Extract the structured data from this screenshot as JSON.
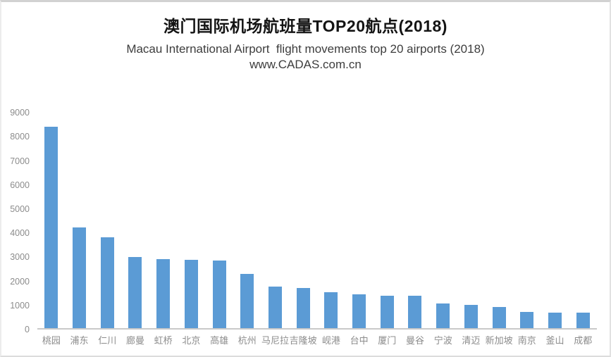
{
  "header": {
    "title": "澳门国际机场航班量TOP20航点(2018)",
    "subtitle": "Macau International Airport  flight movements top 20 airports (2018)",
    "website": "www.CADAS.com.cn"
  },
  "chart_data": {
    "type": "bar",
    "title": "澳门国际机场航班量TOP20航点(2018)",
    "subtitle": "Macau International Airport  flight movements top 20 airports (2018)",
    "watermark": "www.CADAS.com.cn",
    "categories": [
      "桃园",
      "浦东",
      "仁川",
      "廊曼",
      "虹桥",
      "北京",
      "高雄",
      "杭州",
      "马尼拉",
      "吉隆坡",
      "岘港",
      "台中",
      "厦门",
      "曼谷",
      "宁波",
      "清迈",
      "新加坡",
      "南京",
      "釜山",
      "成都"
    ],
    "values": [
      8350,
      4180,
      3770,
      2940,
      2870,
      2840,
      2820,
      2260,
      1730,
      1660,
      1500,
      1390,
      1360,
      1350,
      1010,
      960,
      890,
      660,
      650,
      640
    ],
    "xlabel": "",
    "ylabel": "",
    "ylim": [
      0,
      9000
    ],
    "ytick_step": 1000,
    "ytick_labels": [
      "0",
      "1000",
      "2000",
      "3000",
      "4000",
      "5000",
      "6000",
      "7000",
      "8000",
      "9000"
    ],
    "grid": false,
    "legend": false,
    "bar_color": "#5b9bd5",
    "axis_line_color": "#c9c9c9",
    "axis_label_color": "#8c8c8c",
    "title_color": "#141414",
    "subtitle_color": "#3d3d3d"
  }
}
